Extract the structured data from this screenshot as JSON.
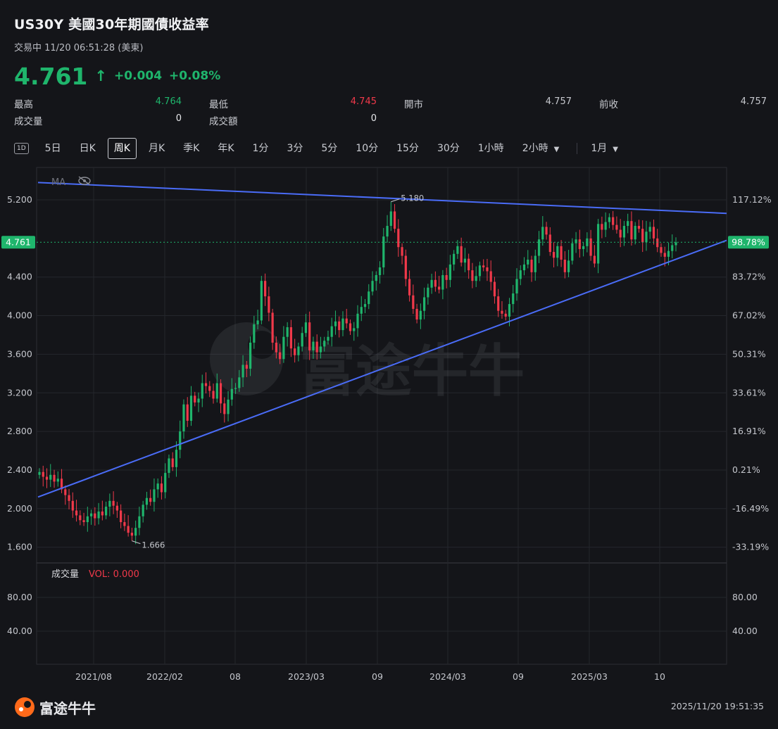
{
  "header": {
    "title": "US30Y  美國30年期國債收益率",
    "status": "交易中 11/20 06:51:28 (美東)",
    "price": "4.761",
    "arrow": "↑",
    "change": "+0.004",
    "change_pct": "+0.08%"
  },
  "stats": [
    {
      "label": "最高",
      "value": "4.764",
      "color": "#1fb56c"
    },
    {
      "label": "最低",
      "value": "4.745",
      "color": "#f0394a"
    },
    {
      "label": "開市",
      "value": "4.757",
      "color": "#c5c7cd"
    },
    {
      "label": "前收",
      "value": "4.757",
      "color": "#c5c7cd"
    },
    {
      "label": "成交量",
      "value": "0",
      "color": "#e6e7ea"
    },
    {
      "label": "成交額",
      "value": "0",
      "color": "#e6e7ea"
    }
  ],
  "tabs": {
    "icon_label": "1D",
    "items": [
      "5日",
      "日K",
      "周K",
      "月K",
      "季K",
      "年K",
      "1分",
      "3分",
      "5分",
      "10分",
      "15分",
      "30分",
      "1小時"
    ],
    "active": "周K",
    "dropdown1": "2小時",
    "dropdown2": "1月"
  },
  "chart_data": {
    "type": "candlestick",
    "ma_label": "MA",
    "y_ticks": [
      "5.200",
      "4.400",
      "4.000",
      "3.600",
      "3.200",
      "2.800",
      "2.400",
      "2.000",
      "1.600"
    ],
    "pct_ticks": [
      "117.12%",
      "83.72%",
      "67.02%",
      "50.31%",
      "33.61%",
      "16.91%",
      "0.21%",
      "-16.49%",
      "-33.19%"
    ],
    "current_label": "4.761",
    "current_pct": "98.78%",
    "high_label": "5.180",
    "low_label": "1.666",
    "x_labels": [
      "2021/08",
      "2022/02",
      "08",
      "2023/03",
      "09",
      "2024/03",
      "09",
      "2025/03",
      "10"
    ],
    "volume_label": "成交量",
    "volume_value": "VOL: 0.000",
    "vol_ticks": [
      "80.00",
      "40.00"
    ],
    "up_color": "#1fb56c",
    "down_color": "#f0394a",
    "trendline_color": "#4a6cf7",
    "closes": [
      2.38,
      2.33,
      2.3,
      2.35,
      2.28,
      2.31,
      2.2,
      2.14,
      2.08,
      1.98,
      1.93,
      1.88,
      1.86,
      1.92,
      1.95,
      1.9,
      1.97,
      1.93,
      2.02,
      2.08,
      2.03,
      1.98,
      1.86,
      1.82,
      1.75,
      1.72,
      1.8,
      1.92,
      2.04,
      2.11,
      2.07,
      2.2,
      2.26,
      2.17,
      2.37,
      2.52,
      2.43,
      2.61,
      2.8,
      3.08,
      2.91,
      3.17,
      3.1,
      3.14,
      3.3,
      3.27,
      3.22,
      3.14,
      3.3,
      3.09,
      2.98,
      3.13,
      3.24,
      3.25,
      3.36,
      3.49,
      3.45,
      3.72,
      3.91,
      3.95,
      4.36,
      4.2,
      4.03,
      3.72,
      3.62,
      3.55,
      3.78,
      3.88,
      3.66,
      3.59,
      3.68,
      3.82,
      3.93,
      3.64,
      3.73,
      3.62,
      3.68,
      3.74,
      3.78,
      3.89,
      3.94,
      3.85,
      3.97,
      3.92,
      3.84,
      3.87,
      4.02,
      4.09,
      4.12,
      4.25,
      4.36,
      4.42,
      4.5,
      4.82,
      4.93,
      5.08,
      4.9,
      4.71,
      4.62,
      4.38,
      4.21,
      4.07,
      3.96,
      4.05,
      4.19,
      4.29,
      4.37,
      4.3,
      4.27,
      4.42,
      4.37,
      4.53,
      4.64,
      4.72,
      4.55,
      4.59,
      4.47,
      4.36,
      4.41,
      4.52,
      4.5,
      4.46,
      4.35,
      4.2,
      4.05,
      4.02,
      3.99,
      4.12,
      4.23,
      4.38,
      4.47,
      4.53,
      4.58,
      4.45,
      4.62,
      4.79,
      4.92,
      4.84,
      4.66,
      4.6,
      4.72,
      4.58,
      4.45,
      4.57,
      4.75,
      4.79,
      4.69,
      4.72,
      4.8,
      4.62,
      4.54,
      4.95,
      4.89,
      4.97,
      5.02,
      4.94,
      4.89,
      4.81,
      4.93,
      4.98,
      4.79,
      4.93,
      4.9,
      4.76,
      4.87,
      4.92,
      4.8,
      4.71,
      4.65,
      4.61,
      4.67,
      4.73,
      4.76
    ],
    "high_value": 5.18,
    "low_value": 1.666
  },
  "footer": {
    "brand": "富途牛牛",
    "timestamp": "2025/11/20 19:51:35"
  }
}
